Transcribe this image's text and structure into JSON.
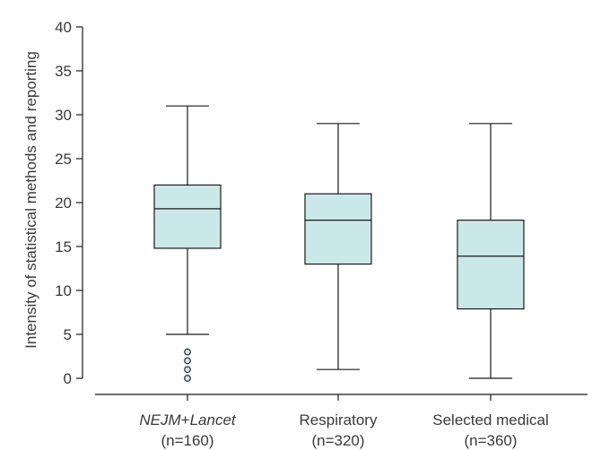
{
  "chart_data": {
    "type": "box",
    "title": "",
    "xlabel": "",
    "ylabel": "Intensity of statistical methods and reporting",
    "ylim": [
      0,
      40
    ],
    "y_ticks": [
      0,
      5,
      10,
      15,
      20,
      25,
      30,
      35,
      40
    ],
    "grid": false,
    "box_fill": "#cbe8e8",
    "box_stroke": "#1a1a1a",
    "categories": [
      {
        "name_parts": [
          {
            "text": "NEJM",
            "italic": true
          },
          {
            "text": "+",
            "italic": false
          },
          {
            "text": "Lancet",
            "italic": true
          }
        ],
        "name": "NEJM+Lancet",
        "n_label": "(n=160)",
        "min": 5,
        "q1": 14.8,
        "median": 19.3,
        "q3": 22,
        "max": 31,
        "outliers": [
          0,
          1,
          2,
          3
        ]
      },
      {
        "name_parts": [
          {
            "text": "Respiratory",
            "italic": false
          }
        ],
        "name": "Respiratory",
        "n_label": "(n=320)",
        "min": 1,
        "q1": 13,
        "median": 18,
        "q3": 21,
        "max": 29,
        "outliers": []
      },
      {
        "name_parts": [
          {
            "text": "Selected medical",
            "italic": false
          }
        ],
        "name": "Selected medical",
        "n_label": "(n=360)",
        "min": 0,
        "q1": 7.9,
        "median": 13.9,
        "q3": 18,
        "max": 29,
        "outliers": []
      }
    ]
  }
}
